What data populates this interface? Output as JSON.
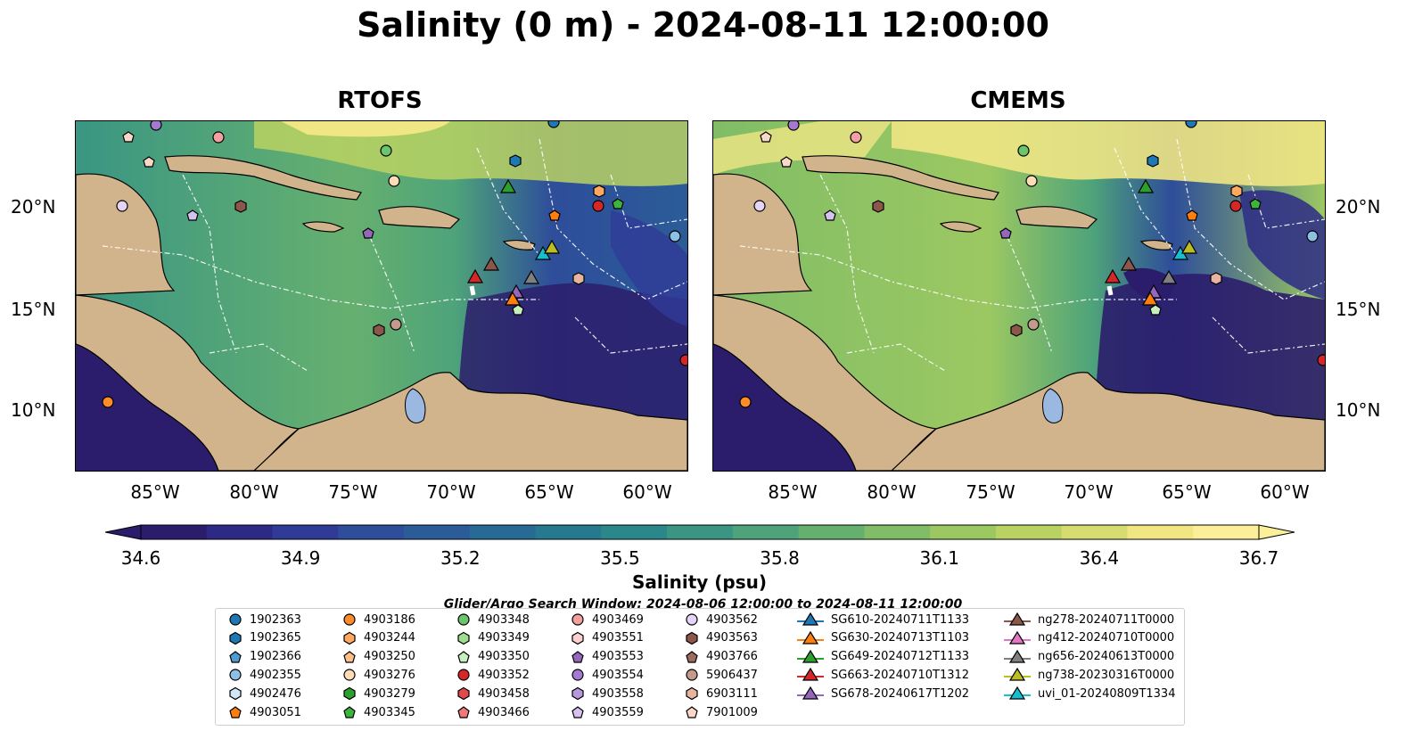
{
  "title": "Salinity (0 m) - 2024-08-11 12:00:00",
  "panels": [
    {
      "title": "RTOFS"
    },
    {
      "title": "CMEMS"
    }
  ],
  "axes": {
    "lon_ticks": [
      "85°W",
      "80°W",
      "75°W",
      "70°W",
      "65°W",
      "60°W"
    ],
    "lat_ticks": [
      "20°N",
      "15°N",
      "10°N"
    ]
  },
  "colorbar": {
    "label": "Salinity (psu)",
    "ticks": [
      "34.6",
      "34.9",
      "35.2",
      "35.5",
      "35.8",
      "36.1",
      "36.4",
      "36.7"
    ],
    "colors": [
      "#2b1d6b",
      "#2d2a86",
      "#2f3b96",
      "#2e4d9a",
      "#2b5c98",
      "#276b94",
      "#257a8f",
      "#2b888a",
      "#3a9683",
      "#4ea37a",
      "#66b06f",
      "#80bd66",
      "#9cc862",
      "#bad263",
      "#d6dc6f",
      "#f0e684",
      "#fbef9a"
    ]
  },
  "search_window": "Glider/Argo Search Window: 2024-08-06 12:00:00 to 2024-08-11 12:00:00",
  "legend": {
    "columns": [
      [
        {
          "label": "1902363",
          "marker": "circle",
          "color": "#1f77b4"
        },
        {
          "label": "1902365",
          "marker": "hexagon",
          "color": "#1f77b4"
        },
        {
          "label": "1902366",
          "marker": "pentagon",
          "color": "#4f9bd0"
        },
        {
          "label": "4902355",
          "marker": "circle",
          "color": "#8ec0e6"
        },
        {
          "label": "4902476",
          "marker": "hexagon",
          "color": "#cfe6f6"
        },
        {
          "label": "4903051",
          "marker": "pentagon",
          "color": "#ff7f0e"
        }
      ],
      [
        {
          "label": "4903186",
          "marker": "circle",
          "color": "#ff8c2a"
        },
        {
          "label": "4903244",
          "marker": "hexagon",
          "color": "#ffa860"
        },
        {
          "label": "4903250",
          "marker": "pentagon",
          "color": "#ffbf8a"
        },
        {
          "label": "4903276",
          "marker": "circle",
          "color": "#ffdcb8"
        },
        {
          "label": "4903279",
          "marker": "hexagon",
          "color": "#2ca02c"
        },
        {
          "label": "4903345",
          "marker": "pentagon",
          "color": "#3cb53c"
        }
      ],
      [
        {
          "label": "4903348",
          "marker": "circle",
          "color": "#6cc46c"
        },
        {
          "label": "4903349",
          "marker": "hexagon",
          "color": "#9fdc8f"
        },
        {
          "label": "4903350",
          "marker": "pentagon",
          "color": "#c8efc0"
        },
        {
          "label": "4903352",
          "marker": "circle",
          "color": "#d62728"
        },
        {
          "label": "4903458",
          "marker": "hexagon",
          "color": "#e04a4a"
        },
        {
          "label": "4903466",
          "marker": "pentagon",
          "color": "#f07878"
        }
      ],
      [
        {
          "label": "4903469",
          "marker": "circle",
          "color": "#f4a0a0"
        },
        {
          "label": "4903551",
          "marker": "hexagon",
          "color": "#fbd0d0"
        },
        {
          "label": "4903553",
          "marker": "pentagon",
          "color": "#9467bd"
        },
        {
          "label": "4903554",
          "marker": "circle",
          "color": "#a47ad0"
        },
        {
          "label": "4903558",
          "marker": "hexagon",
          "color": "#b898dc"
        },
        {
          "label": "4903559",
          "marker": "pentagon",
          "color": "#d6c2ef"
        }
      ],
      [
        {
          "label": "4903562",
          "marker": "circle",
          "color": "#e6d4f7"
        },
        {
          "label": "4903563",
          "marker": "hexagon",
          "color": "#8c564b"
        },
        {
          "label": "4903766",
          "marker": "pentagon",
          "color": "#9e6a5e"
        },
        {
          "label": "5906437",
          "marker": "circle",
          "color": "#c49a8c"
        },
        {
          "label": "6903111",
          "marker": "hexagon",
          "color": "#e8b4a0"
        },
        {
          "label": "7901009",
          "marker": "pentagon",
          "color": "#fad8c8"
        }
      ],
      [
        {
          "label": "SG610-20240711T1133",
          "marker": "triangle",
          "color": "#1f77b4"
        },
        {
          "label": "SG630-20240713T1103",
          "marker": "triangle",
          "color": "#ff7f0e"
        },
        {
          "label": "SG649-20240712T1133",
          "marker": "triangle",
          "color": "#2ca02c"
        },
        {
          "label": "SG663-20240710T1312",
          "marker": "triangle",
          "color": "#d62728"
        },
        {
          "label": "SG678-20240617T1202",
          "marker": "triangle",
          "color": "#9467bd"
        }
      ],
      [
        {
          "label": "ng278-20240711T0000",
          "marker": "triangle",
          "color": "#8c564b"
        },
        {
          "label": "ng412-20240710T0000",
          "marker": "triangle",
          "color": "#e377c2"
        },
        {
          "label": "ng656-20240613T0000",
          "marker": "triangle",
          "color": "#7f7f7f"
        },
        {
          "label": "ng738-20230316T0000",
          "marker": "triangle",
          "color": "#bcbd22"
        },
        {
          "label": "uvi_01-20240809T1334",
          "marker": "triangle",
          "color": "#17becf"
        }
      ]
    ]
  }
}
